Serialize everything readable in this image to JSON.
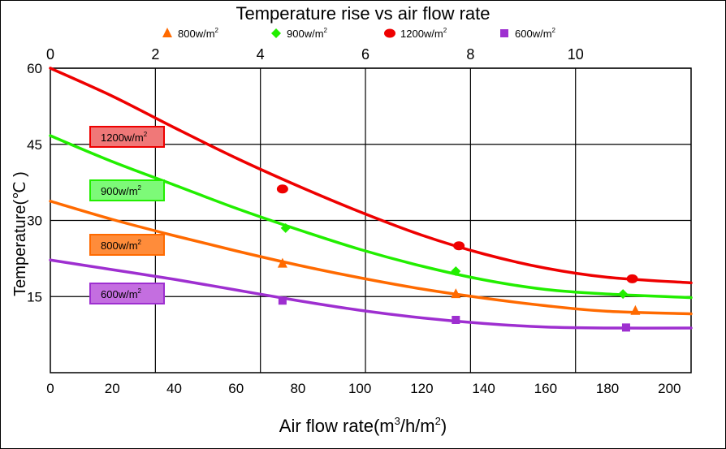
{
  "chart_data": {
    "type": "line",
    "title": "Temperature rise vs air flow rate",
    "xlabel_text": "Air flow rate(m",
    "xlabel_sup1": "3",
    "xlabel_mid": "/h/m",
    "xlabel_sup2": "2",
    "xlabel_end": ")",
    "ylabel": "Temperature(℃ )",
    "x_bottom_ticks": [
      "0",
      "20",
      "40",
      "60",
      "80",
      "100",
      "120",
      "140",
      "160",
      "180",
      "200"
    ],
    "x_top_ticks": [
      "0",
      "2",
      "4",
      "6",
      "8",
      "10"
    ],
    "y_ticks": [
      "15",
      "30",
      "45",
      "60"
    ],
    "xlim": [
      0,
      207
    ],
    "ylim": [
      0,
      60
    ],
    "top_xlim": [
      0,
      12.2
    ],
    "grid": true,
    "legend_position": "top",
    "legend_unit_sup": "2",
    "series": [
      {
        "name": "800w/m",
        "color": "#ff6a00",
        "marker": "triangle",
        "x": [
          0,
          20,
          40,
          60,
          80,
          100,
          120,
          140,
          160,
          180,
          207
        ],
        "y": [
          33.8,
          30.2,
          27.0,
          24.0,
          21.2,
          18.7,
          16.5,
          14.7,
          13.2,
          12.1,
          11.6
        ],
        "points_x": [
          75,
          131,
          189
        ],
        "points_y": [
          21.5,
          15.5,
          12.2
        ],
        "label": "800w/m"
      },
      {
        "name": "900w/m",
        "color": "#22ee00",
        "marker": "diamond",
        "x": [
          0,
          20,
          40,
          60,
          80,
          100,
          120,
          140,
          160,
          180,
          207
        ],
        "y": [
          46.7,
          41.6,
          37.0,
          32.4,
          28.2,
          24.3,
          21.0,
          18.3,
          16.4,
          15.5,
          14.8
        ],
        "points_x": [
          76,
          131,
          185
        ],
        "points_y": [
          28.5,
          20.0,
          15.5
        ],
        "label": "900w/m"
      },
      {
        "name": "1200w/m",
        "color": "#ee0000",
        "marker": "circle",
        "x": [
          0,
          20,
          40,
          60,
          80,
          100,
          120,
          140,
          160,
          180,
          207
        ],
        "y": [
          60.0,
          54.5,
          48.3,
          42.3,
          36.8,
          31.7,
          27.1,
          23.4,
          20.6,
          18.8,
          17.7
        ],
        "points_x": [
          75,
          132,
          188
        ],
        "points_y": [
          36.2,
          25.0,
          18.5
        ],
        "label": "1200w/m"
      },
      {
        "name": "600w/m",
        "color": "#9e2fd0",
        "marker": "square",
        "x": [
          0,
          20,
          40,
          60,
          80,
          100,
          120,
          140,
          160,
          180,
          207
        ],
        "y": [
          22.2,
          20.3,
          18.4,
          16.3,
          14.2,
          12.3,
          10.8,
          9.7,
          9.0,
          8.8,
          8.8
        ],
        "points_x": [
          75,
          131,
          186
        ],
        "points_y": [
          14.2,
          10.4,
          8.9
        ],
        "label": "600w/m"
      }
    ],
    "labels_fill": {
      "1200w/m": "#f07878",
      "900w/m": "#7dfa78",
      "800w/m": "#ff8c3a",
      "600w/m": "#c46ee0"
    }
  }
}
